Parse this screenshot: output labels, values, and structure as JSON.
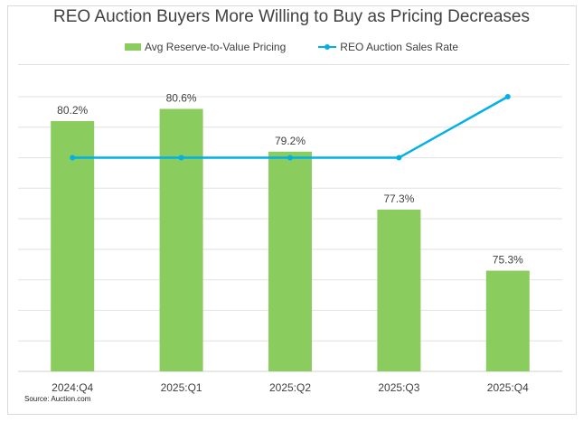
{
  "chart_data": {
    "type": "bar",
    "title": "REO Auction Buyers More Willing to Buy as Pricing Decreases",
    "categories": [
      "2024:Q4",
      "2025:Q1",
      "2025:Q2",
      "2025:Q3",
      "2025:Q4"
    ],
    "series": [
      {
        "name": "Avg Reserve-to-Value Pricing",
        "type": "bar",
        "color": "#8bcc5e",
        "values": [
          80.2,
          80.6,
          79.2,
          77.3,
          75.3
        ],
        "labels": [
          "80.2%",
          "80.6%",
          "79.2%",
          "77.3%",
          "75.3%"
        ]
      },
      {
        "name": "REO Auction Sales Rate",
        "type": "line",
        "color": "#00b0e6",
        "values": [
          79.0,
          79.0,
          79.0,
          79.0,
          81.0
        ],
        "note": "plotted on unlabeled secondary scale; relative levels only"
      }
    ],
    "xlabel": "",
    "ylabel": "",
    "ylim": [
      72,
      81
    ],
    "grid": true,
    "legend": "top-center",
    "source": "Source: Auction.com"
  }
}
